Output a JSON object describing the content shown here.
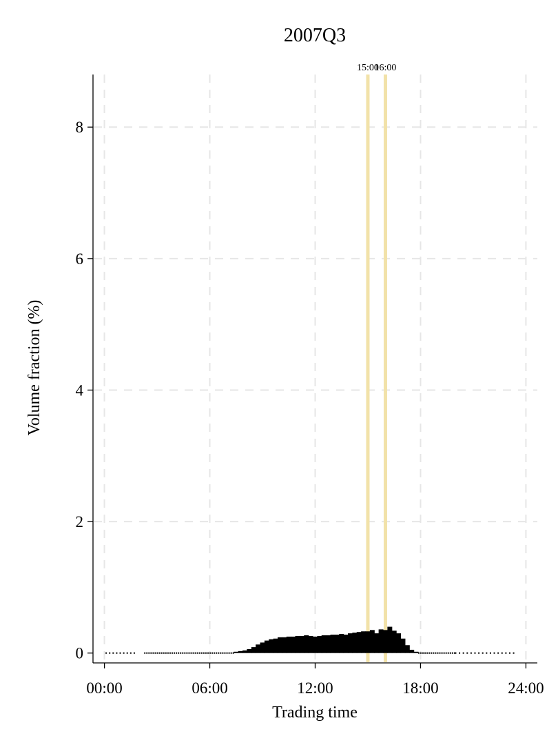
{
  "chart_data": {
    "type": "bar",
    "title": "2007Q3",
    "xlabel": "Trading time",
    "ylabel": "Volume fraction (%)",
    "x_unit": "hours",
    "xlim": [
      -0.65,
      24.65
    ],
    "ylim": [
      -0.15,
      8.8
    ],
    "x_ticks": [
      {
        "value": 0,
        "label": "00:00"
      },
      {
        "value": 6,
        "label": "06:00"
      },
      {
        "value": 12,
        "label": "12:00"
      },
      {
        "value": 18,
        "label": "18:00"
      },
      {
        "value": 24,
        "label": "24:00"
      }
    ],
    "y_ticks": [
      {
        "value": 0,
        "label": "0"
      },
      {
        "value": 2,
        "label": "2"
      },
      {
        "value": 4,
        "label": "4"
      },
      {
        "value": 6,
        "label": "6"
      },
      {
        "value": 8,
        "label": "8"
      }
    ],
    "grid": true,
    "reference_lines": [
      {
        "x": 15,
        "label": "15:00"
      },
      {
        "x": 16,
        "label": "16:00"
      }
    ],
    "x": [
      7.5,
      7.75,
      8.0,
      8.25,
      8.5,
      8.75,
      9.0,
      9.25,
      9.5,
      9.75,
      10.0,
      10.25,
      10.5,
      10.75,
      11.0,
      11.25,
      11.5,
      11.75,
      12.0,
      12.25,
      12.5,
      12.75,
      13.0,
      13.25,
      13.5,
      13.75,
      14.0,
      14.25,
      14.5,
      14.75,
      15.0,
      15.25,
      15.5,
      15.75,
      16.0,
      16.25,
      16.5,
      16.75,
      17.0,
      17.25,
      17.5,
      17.75
    ],
    "values": [
      0.02,
      0.03,
      0.04,
      0.06,
      0.09,
      0.13,
      0.16,
      0.19,
      0.21,
      0.22,
      0.24,
      0.24,
      0.25,
      0.25,
      0.26,
      0.26,
      0.27,
      0.26,
      0.25,
      0.26,
      0.27,
      0.27,
      0.28,
      0.28,
      0.29,
      0.28,
      0.3,
      0.31,
      0.32,
      0.33,
      0.33,
      0.35,
      0.3,
      0.36,
      0.35,
      0.4,
      0.34,
      0.3,
      0.22,
      0.12,
      0.05,
      0.02
    ],
    "series_color": "#000000",
    "reference_line_color": "#f2e2a9",
    "grid_color": "#e6e6e6"
  }
}
